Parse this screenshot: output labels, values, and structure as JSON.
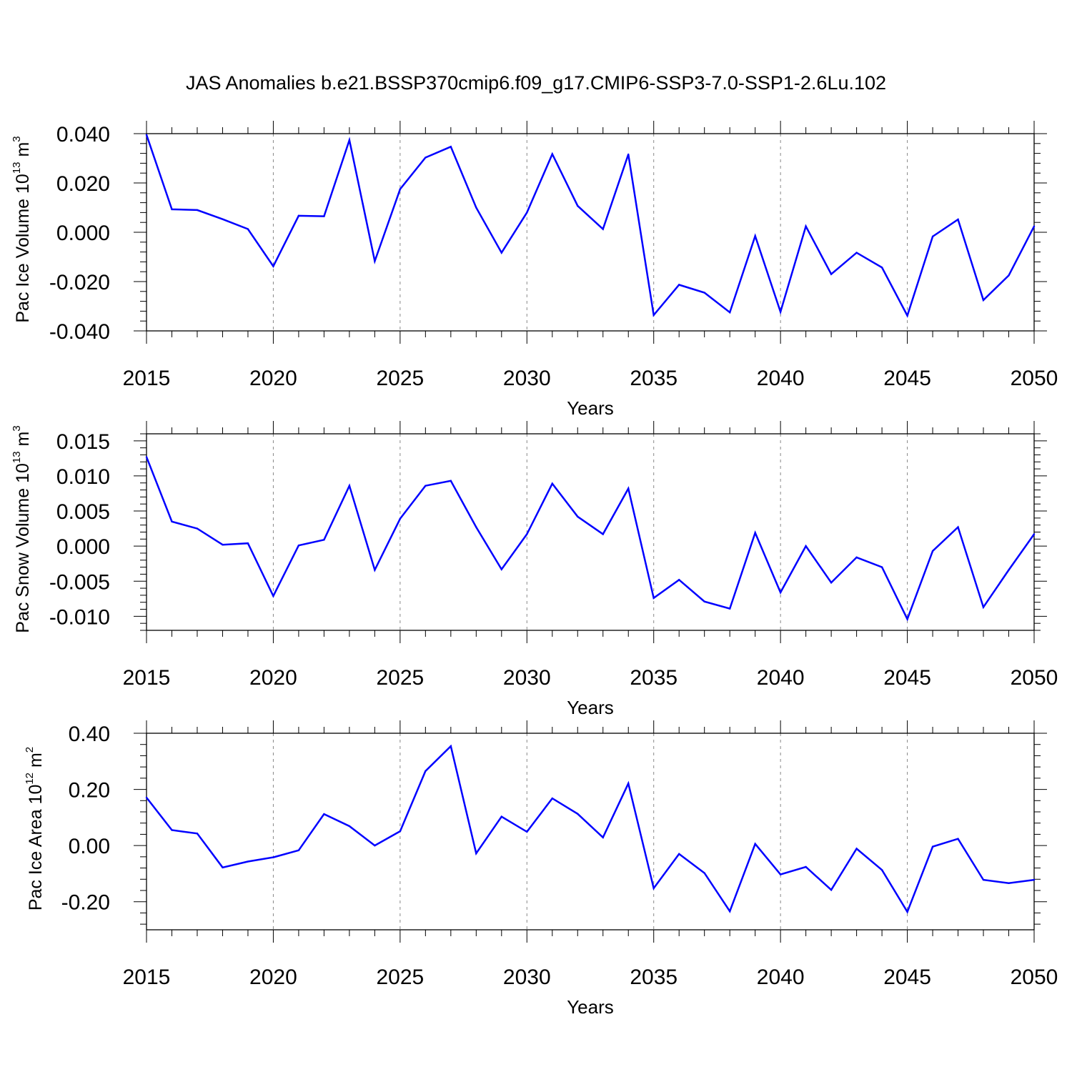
{
  "title": "JAS Anomalies b.e21.BSSP370cmip6.f09_g17.CMIP6-SSP3-7.0-SSP1-2.6Lu.102",
  "chart_data": [
    {
      "type": "line",
      "ylabel_text": "Pac Ice Volume 10",
      "ylabel_exp": "13",
      "ylabel_unit": " m",
      "ylabel_unit_exp": "3",
      "xlabel": "Years",
      "xlim": [
        2015,
        2050
      ],
      "ylim": [
        -0.04,
        0.04
      ],
      "xticks": [
        2015,
        2020,
        2025,
        2030,
        2035,
        2040,
        2045,
        2050
      ],
      "xtick_labels": [
        "2015",
        "2020",
        "2025",
        "2030",
        "2035",
        "2040",
        "2045",
        "2050"
      ],
      "yticks": [
        -0.04,
        -0.02,
        0.0,
        0.02,
        0.04
      ],
      "ytick_labels": [
        "-0.040",
        "-0.020",
        "0.000",
        "0.020",
        "0.040"
      ],
      "yminor_step": 0.004,
      "line_color": "#0000ff",
      "x": [
        2015,
        2016,
        2017,
        2018,
        2019,
        2020,
        2021,
        2022,
        2023,
        2024,
        2025,
        2026,
        2027,
        2028,
        2029,
        2030,
        2031,
        2032,
        2033,
        2034,
        2035,
        2036,
        2037,
        2038,
        2039,
        2040,
        2041,
        2042,
        2043,
        2044,
        2045,
        2046,
        2047,
        2048,
        2049,
        2050
      ],
      "values": [
        0.0395,
        0.0093,
        0.009,
        0.0053,
        0.0013,
        -0.0138,
        0.0067,
        0.0065,
        0.0374,
        -0.0117,
        0.0175,
        0.0303,
        0.0347,
        0.01,
        -0.0083,
        0.008,
        0.0317,
        0.0107,
        0.0013,
        0.0316,
        -0.0336,
        -0.0213,
        -0.0245,
        -0.0325,
        -0.0015,
        -0.0323,
        0.0024,
        -0.017,
        -0.0083,
        -0.0143,
        -0.0338,
        -0.0017,
        0.0052,
        -0.0275,
        -0.0175,
        0.0024
      ]
    },
    {
      "type": "line",
      "ylabel_text": "Pac Snow Volume 10",
      "ylabel_exp": "13",
      "ylabel_unit": " m",
      "ylabel_unit_exp": "3",
      "xlabel": "Years",
      "xlim": [
        2015,
        2050
      ],
      "ylim": [
        -0.012,
        0.016
      ],
      "xticks": [
        2015,
        2020,
        2025,
        2030,
        2035,
        2040,
        2045,
        2050
      ],
      "xtick_labels": [
        "2015",
        "2020",
        "2025",
        "2030",
        "2035",
        "2040",
        "2045",
        "2050"
      ],
      "yticks": [
        -0.01,
        -0.005,
        0.0,
        0.005,
        0.01,
        0.015
      ],
      "ytick_labels": [
        "-0.010",
        "-0.005",
        "0.000",
        "0.005",
        "0.010",
        "0.015"
      ],
      "yminor_step": 0.001,
      "line_color": "#0000ff",
      "x": [
        2015,
        2016,
        2017,
        2018,
        2019,
        2020,
        2021,
        2022,
        2023,
        2024,
        2025,
        2026,
        2027,
        2028,
        2029,
        2030,
        2031,
        2032,
        2033,
        2034,
        2035,
        2036,
        2037,
        2038,
        2039,
        2040,
        2041,
        2042,
        2043,
        2044,
        2045,
        2046,
        2047,
        2048,
        2049,
        2050
      ],
      "values": [
        0.0127,
        0.0035,
        0.0025,
        0.0002,
        0.0004,
        -0.0071,
        0.0001,
        0.0009,
        0.0086,
        -0.0034,
        0.0039,
        0.0086,
        0.0093,
        0.0027,
        -0.0033,
        0.0017,
        0.0089,
        0.0042,
        0.0017,
        0.0082,
        -0.0074,
        -0.0048,
        -0.0079,
        -0.0089,
        0.0019,
        -0.0066,
        0.0,
        -0.0052,
        -0.0016,
        -0.003,
        -0.0104,
        -0.0007,
        0.0027,
        -0.0087,
        -0.0034,
        0.0017
      ]
    },
    {
      "type": "line",
      "ylabel_text": "Pac Ice Area 10",
      "ylabel_exp": "12",
      "ylabel_unit": " m",
      "ylabel_unit_exp": "2",
      "xlabel": "Years",
      "xlim": [
        2015,
        2050
      ],
      "ylim": [
        -0.3,
        0.4
      ],
      "xticks": [
        2015,
        2020,
        2025,
        2030,
        2035,
        2040,
        2045,
        2050
      ],
      "xtick_labels": [
        "2015",
        "2020",
        "2025",
        "2030",
        "2035",
        "2040",
        "2045",
        "2050"
      ],
      "yticks": [
        -0.2,
        0.0,
        0.2,
        0.4
      ],
      "ytick_labels": [
        "-0.20",
        "0.00",
        "0.20",
        "0.40"
      ],
      "yminor_step": 0.04,
      "line_color": "#0000ff",
      "x": [
        2015,
        2016,
        2017,
        2018,
        2019,
        2020,
        2021,
        2022,
        2023,
        2024,
        2025,
        2026,
        2027,
        2028,
        2029,
        2030,
        2031,
        2032,
        2033,
        2034,
        2035,
        2036,
        2037,
        2038,
        2039,
        2040,
        2041,
        2042,
        2043,
        2044,
        2045,
        2046,
        2047,
        2048,
        2049,
        2050
      ],
      "values": [
        0.171,
        0.055,
        0.043,
        -0.078,
        -0.057,
        -0.042,
        -0.017,
        0.112,
        0.069,
        0.0,
        0.051,
        0.265,
        0.354,
        -0.028,
        0.103,
        0.049,
        0.168,
        0.113,
        0.029,
        0.221,
        -0.152,
        -0.03,
        -0.098,
        -0.234,
        0.006,
        -0.103,
        -0.076,
        -0.158,
        -0.011,
        -0.087,
        -0.236,
        -0.004,
        0.024,
        -0.122,
        -0.134,
        -0.122
      ]
    }
  ]
}
